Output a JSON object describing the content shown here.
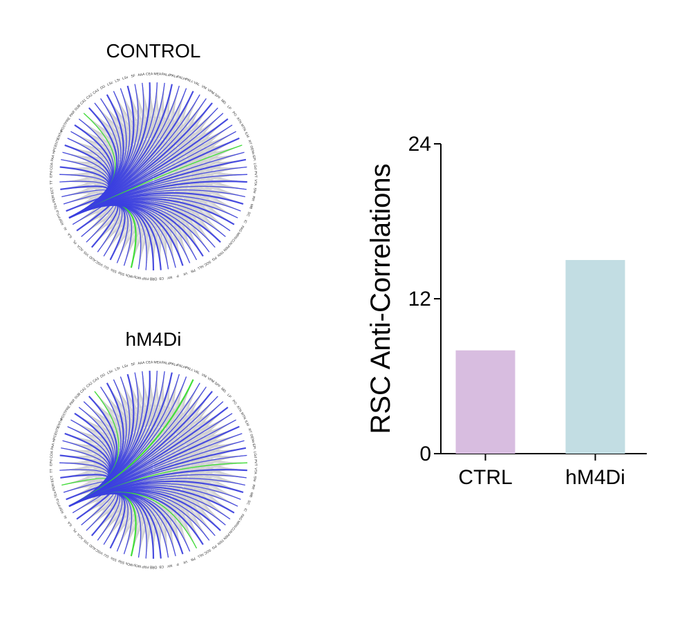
{
  "chart_data": [
    {
      "type": "chord",
      "title": "CONTROL",
      "nodes": [
        "ORB",
        "FRP",
        "MOp",
        "MOs",
        "SSp",
        "SSs",
        "GU",
        "VISC",
        "AUD",
        "VIS",
        "ACA",
        "PL",
        "ILA",
        "AI",
        "RSP",
        "PTLp",
        "TEa",
        "PERI",
        "ECT",
        "TT",
        "EPd",
        "COA",
        "PAA",
        "HPC",
        "ENTL",
        "ENTm",
        "POST",
        "PRE",
        "PAR",
        "SUB",
        "CA1",
        "CA2",
        "CA3",
        "DG",
        "LSc",
        "LSr",
        "LSv",
        "SF",
        "AAA",
        "CEA",
        "MEA",
        "PALd",
        "PALv",
        "PALm",
        "PALc",
        "VAL",
        "VM",
        "VPM",
        "SPF",
        "MG",
        "LP",
        "PO",
        "ATN",
        "MTN",
        "ILM",
        "RT",
        "GENv",
        "EPI",
        "LGd",
        "PVT",
        "VTA",
        "SNr",
        "RR",
        "MB",
        "SC",
        "IC",
        "PAG",
        "MRN",
        "CUN",
        "PRN",
        "TRN",
        "PG",
        "SOC",
        "NLL",
        "PB",
        "VII",
        "P",
        "MY",
        "CB"
      ],
      "source_node": "RSP",
      "link_colors": {
        "negative": "#3b3fe0",
        "positive_top": "#33e02a",
        "other": "#cfcfcf"
      },
      "negative_links": 8,
      "top_links": 3
    },
    {
      "type": "chord",
      "title": "hM4Di",
      "nodes": [
        "ORB",
        "FRP",
        "MOp",
        "MOs",
        "SSp",
        "SSs",
        "GU",
        "VISC",
        "AUD",
        "VIS",
        "ACA",
        "PL",
        "ILA",
        "AI",
        "RSP",
        "PTLp",
        "TEa",
        "PERI",
        "ECT",
        "TT",
        "EPd",
        "COA",
        "PAA",
        "HPC",
        "ENTL",
        "ENTm",
        "POST",
        "PRE",
        "PAR",
        "SUB",
        "CA1",
        "CA2",
        "CA3",
        "DG",
        "LSc",
        "LSr",
        "LSv",
        "SF",
        "AAA",
        "CEA",
        "MEA",
        "PALd",
        "PALv",
        "PALm",
        "PALc",
        "VAL",
        "VM",
        "VPM",
        "SPF",
        "MG",
        "LP",
        "PO",
        "ATN",
        "MTN",
        "ILM",
        "RT",
        "GENv",
        "EPI",
        "LGd",
        "PVT",
        "VTA",
        "SNr",
        "RR",
        "MB",
        "SC",
        "IC",
        "PAG",
        "MRN",
        "CUN",
        "PRN",
        "TRN",
        "PG",
        "SOC",
        "NLL",
        "PB",
        "VII",
        "P",
        "MY",
        "CB"
      ],
      "source_node": "RSP",
      "link_colors": {
        "negative": "#3b3fe0",
        "positive_top": "#33e02a",
        "other": "#cfcfcf"
      },
      "negative_links": 15,
      "top_links": 6
    },
    {
      "type": "bar",
      "categories": [
        "CTRL",
        "hM4Di"
      ],
      "values": [
        8,
        15
      ],
      "colors": [
        "#d8bde0",
        "#c2dde3"
      ],
      "ylabel": "RSC Anti-Correlations",
      "xlabel": "",
      "ylim": [
        0,
        24
      ],
      "yticks": [
        "0",
        "12",
        "24"
      ],
      "grid": false
    }
  ]
}
